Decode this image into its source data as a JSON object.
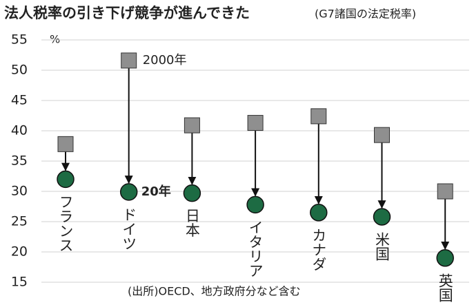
{
  "chart_data": {
    "type": "dumbbell",
    "title": "法人税率の引き下げ競争が進んできた",
    "subtitle": "(G7諸国の法定税率)",
    "y_unit": "%",
    "note": "(出所)OECD、地方政府分など含む",
    "categories": [
      "フランス",
      "ドイツ",
      "日本",
      "イタリア",
      "カナダ",
      "米国",
      "英国"
    ],
    "series": [
      {
        "name": "2000年",
        "color": "#8f8f8f",
        "marker": "square",
        "values": [
          37.8,
          51.6,
          40.9,
          41.3,
          42.4,
          39.3,
          30.0
        ]
      },
      {
        "name": "20年",
        "color": "#1d6b43",
        "marker": "circle",
        "values": [
          32.0,
          29.9,
          29.7,
          27.8,
          26.5,
          25.8,
          19.0
        ]
      }
    ],
    "ylim": [
      15,
      55
    ],
    "yticks": [
      15,
      20,
      25,
      30,
      35,
      40,
      45,
      50,
      55
    ],
    "grid": true
  }
}
